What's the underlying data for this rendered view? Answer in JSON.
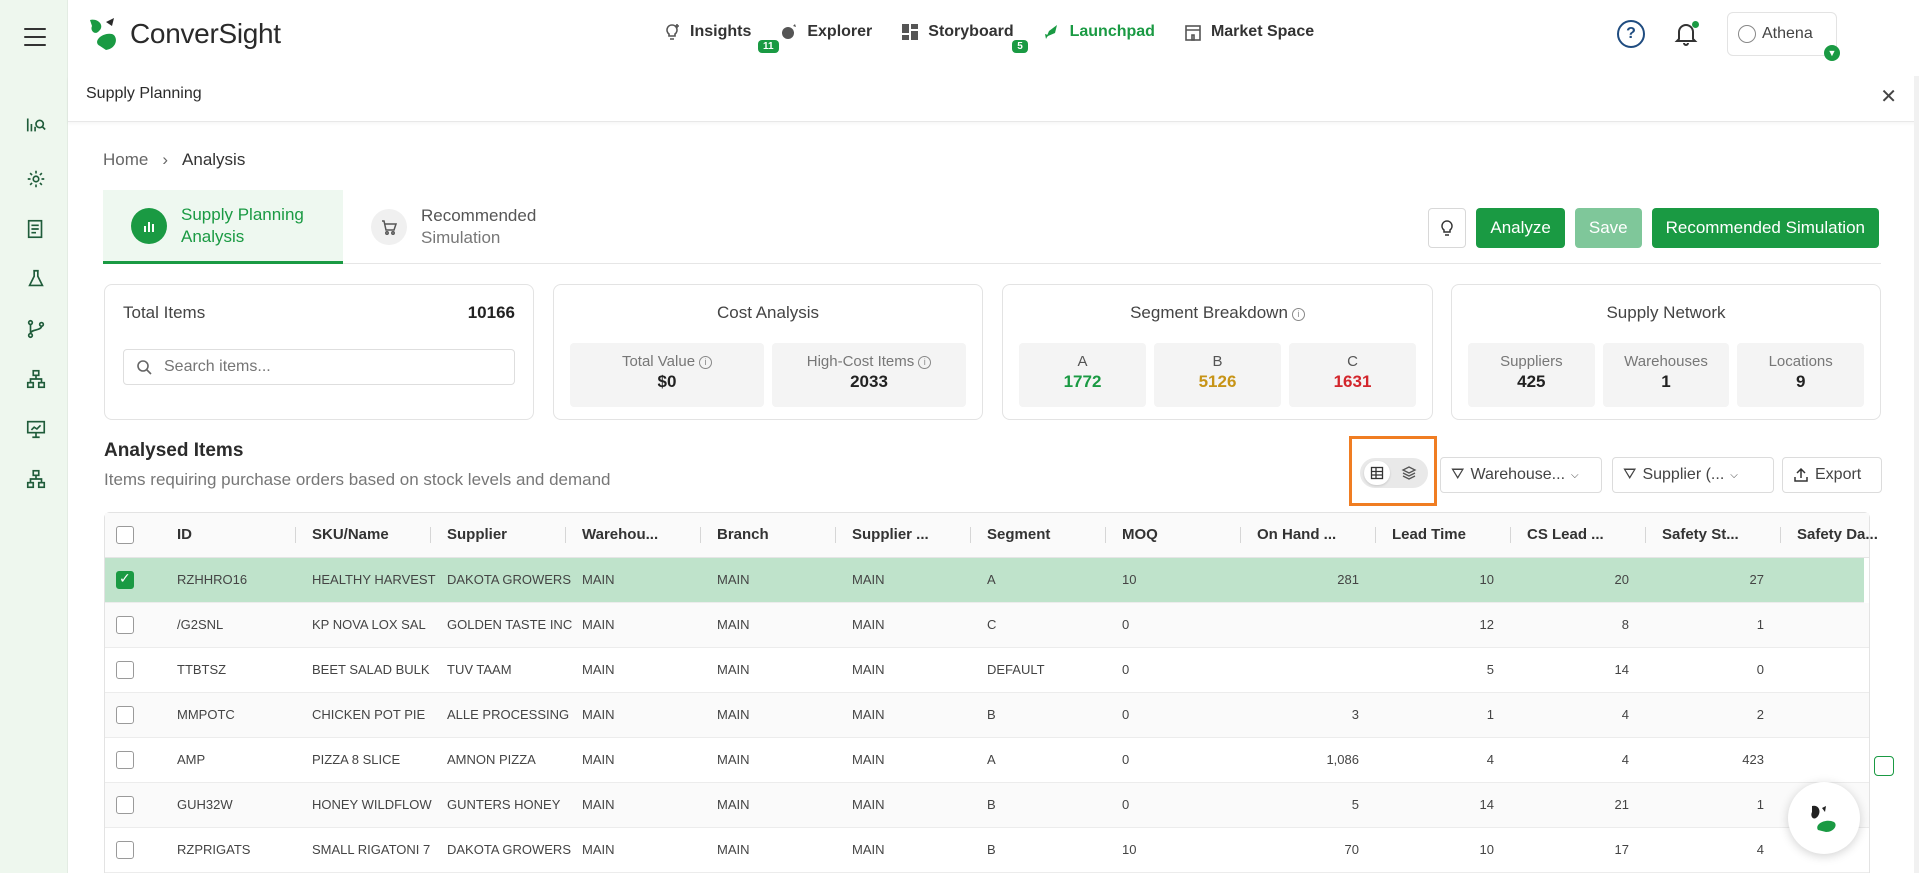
{
  "app": {
    "logo_text": "ConverSight"
  },
  "nav": [
    {
      "label": "Insights",
      "badge": "11",
      "icon": "bulb-plus-icon"
    },
    {
      "label": "Explorer",
      "badge": "",
      "icon": "explorer-icon"
    },
    {
      "label": "Storyboard",
      "badge": "5",
      "icon": "storyboard-icon"
    },
    {
      "label": "Launchpad",
      "badge": "",
      "icon": "rocket-icon",
      "active": true
    },
    {
      "label": "Market Space",
      "badge": "",
      "icon": "store-icon"
    }
  ],
  "user": {
    "name": "Athena"
  },
  "subbar": {
    "title": "Supply Planning"
  },
  "breadcrumb": {
    "home": "Home",
    "current": "Analysis"
  },
  "tabs": [
    {
      "line1": "Supply Planning",
      "line2": "Analysis"
    },
    {
      "line1": "Recommended",
      "line2": "Simulation"
    }
  ],
  "actions": {
    "analyze": "Analyze",
    "save": "Save",
    "recommended": "Recommended Simulation"
  },
  "cards": {
    "total": {
      "label": "Total Items",
      "count": "10166",
      "search_placeholder": "Search items..."
    },
    "cost": {
      "title": "Cost Analysis",
      "total_value_label": "Total Value",
      "total_value": "$0",
      "high_cost_label": "High-Cost Items",
      "high_cost": "2033"
    },
    "segment": {
      "title": "Segment Breakdown",
      "a_label": "A",
      "a": "1772",
      "b_label": "B",
      "b": "5126",
      "c_label": "C",
      "c": "1631"
    },
    "network": {
      "title": "Supply Network",
      "suppliers_label": "Suppliers",
      "suppliers": "425",
      "warehouses_label": "Warehouses",
      "warehouses": "1",
      "locations_label": "Locations",
      "locations": "9"
    }
  },
  "section": {
    "title": "Analysed Items",
    "subtitle": "Items requiring purchase orders based on stock levels and demand"
  },
  "filters": {
    "warehouse": "Warehouse...",
    "supplier": "Supplier (...",
    "export": "Export"
  },
  "colors": {
    "accent": "#1a9a43",
    "segA": "#1a9a43",
    "segB": "#c79417",
    "segC": "#d3262c",
    "highlight": "#f07d22"
  },
  "table": {
    "headers": [
      "ID",
      "SKU/Name",
      "Supplier",
      "Warehou...",
      "Branch",
      "Supplier ...",
      "Segment",
      "MOQ",
      "On Hand ...",
      "Lead Time",
      "CS Lead ...",
      "Safety St...",
      "Safety Da..."
    ],
    "rows": [
      [
        "RZHHRO16",
        "HEALTHY HARVEST",
        "DAKOTA GROWERS",
        "MAIN",
        "MAIN",
        "MAIN",
        "A",
        "10",
        "281",
        "10",
        "20",
        "27",
        ""
      ],
      [
        "/G2SNL",
        "KP NOVA LOX SAL",
        "GOLDEN TASTE INC",
        "MAIN",
        "MAIN",
        "MAIN",
        "C",
        "0",
        "",
        "12",
        "8",
        "1",
        ""
      ],
      [
        "TTBTSZ",
        "BEET SALAD BULK",
        "TUV TAAM",
        "MAIN",
        "MAIN",
        "MAIN",
        "DEFAULT",
        "0",
        "",
        "5",
        "14",
        "0",
        ""
      ],
      [
        "MMPOTC",
        "CHICKEN POT PIE",
        "ALLE PROCESSING",
        "MAIN",
        "MAIN",
        "MAIN",
        "B",
        "0",
        "3",
        "1",
        "4",
        "2",
        ""
      ],
      [
        "AMP",
        "PIZZA 8 SLICE",
        "AMNON PIZZA",
        "MAIN",
        "MAIN",
        "MAIN",
        "A",
        "0",
        "1,086",
        "4",
        "4",
        "423",
        ""
      ],
      [
        "GUH32W",
        "HONEY WILDFLOW",
        "GUNTERS HONEY",
        "MAIN",
        "MAIN",
        "MAIN",
        "B",
        "0",
        "5",
        "14",
        "21",
        "1",
        ""
      ],
      [
        "RZPRIGATS",
        "SMALL RIGATONI 7",
        "DAKOTA GROWERS",
        "MAIN",
        "MAIN",
        "MAIN",
        "B",
        "10",
        "70",
        "10",
        "17",
        "4",
        ""
      ]
    ]
  }
}
